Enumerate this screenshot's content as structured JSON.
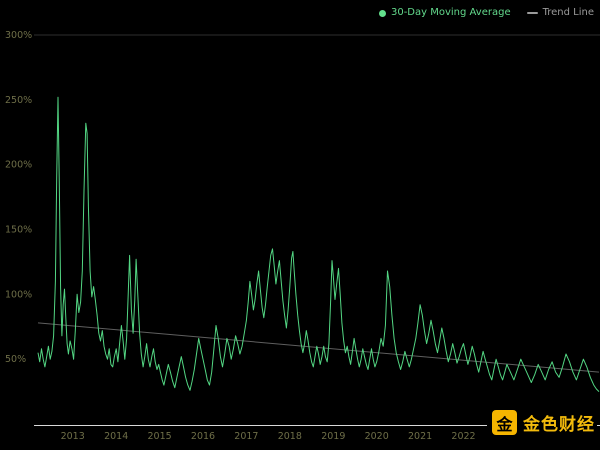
{
  "legend": {
    "series1": "30-Day Moving Average",
    "series2": "Trend Line"
  },
  "watermark": {
    "text": "金色财经",
    "logo_glyph": "金"
  },
  "colors": {
    "background": "#000000",
    "series": "#53d683",
    "legend_dot": "#63e08c",
    "trend": "#707070",
    "tick": "#6e6e48",
    "axis": "#d9d9d9",
    "grid": "#2e2e2e",
    "watermark_gold": "#f3bb0c",
    "watermark_logo_bg": "#f6b500"
  },
  "chart_data": {
    "type": "line",
    "title": "",
    "xlabel": "",
    "ylabel": "",
    "legend_position": "top-right",
    "grid": "top boundary line only, black background",
    "xlim": [
      2012.2,
      2025.12
    ],
    "ylim": [
      0,
      300
    ],
    "yticks": [
      {
        "value": 300,
        "label": "300%"
      },
      {
        "value": 250,
        "label": "250%"
      },
      {
        "value": 200,
        "label": "200%"
      },
      {
        "value": 150,
        "label": "150%"
      },
      {
        "value": 100,
        "label": "100%"
      },
      {
        "value": 50,
        "label": "50%"
      }
    ],
    "xticks": [
      {
        "value": 2013,
        "label": "2013"
      },
      {
        "value": 2014,
        "label": "2014"
      },
      {
        "value": 2015,
        "label": "2015"
      },
      {
        "value": 2016,
        "label": "2016"
      },
      {
        "value": 2017,
        "label": "2017"
      },
      {
        "value": 2018,
        "label": "2018"
      },
      {
        "value": 2019,
        "label": "2019"
      },
      {
        "value": 2020,
        "label": "2020"
      },
      {
        "value": 2021,
        "label": "2021"
      },
      {
        "value": 2022,
        "label": "2022"
      }
    ],
    "series": [
      {
        "name": "30-Day Moving Average",
        "color": "#53d683",
        "points": [
          [
            2012.2,
            55
          ],
          [
            2012.24,
            48
          ],
          [
            2012.28,
            58
          ],
          [
            2012.32,
            50
          ],
          [
            2012.36,
            44
          ],
          [
            2012.4,
            52
          ],
          [
            2012.44,
            60
          ],
          [
            2012.48,
            50
          ],
          [
            2012.52,
            56
          ],
          [
            2012.56,
            68
          ],
          [
            2012.6,
            110
          ],
          [
            2012.63,
            190
          ],
          [
            2012.66,
            252
          ],
          [
            2012.69,
            185
          ],
          [
            2012.72,
            105
          ],
          [
            2012.75,
            68
          ],
          [
            2012.78,
            92
          ],
          [
            2012.81,
            104
          ],
          [
            2012.84,
            82
          ],
          [
            2012.87,
            62
          ],
          [
            2012.9,
            54
          ],
          [
            2012.94,
            64
          ],
          [
            2012.98,
            58
          ],
          [
            2013.02,
            50
          ],
          [
            2013.06,
            72
          ],
          [
            2013.1,
            100
          ],
          [
            2013.14,
            86
          ],
          [
            2013.18,
            94
          ],
          [
            2013.22,
            118
          ],
          [
            2013.26,
            180
          ],
          [
            2013.3,
            232
          ],
          [
            2013.33,
            224
          ],
          [
            2013.36,
            168
          ],
          [
            2013.4,
            118
          ],
          [
            2013.44,
            98
          ],
          [
            2013.48,
            106
          ],
          [
            2013.52,
            96
          ],
          [
            2013.56,
            84
          ],
          [
            2013.6,
            70
          ],
          [
            2013.64,
            64
          ],
          [
            2013.68,
            72
          ],
          [
            2013.72,
            60
          ],
          [
            2013.76,
            54
          ],
          [
            2013.8,
            50
          ],
          [
            2013.84,
            58
          ],
          [
            2013.88,
            46
          ],
          [
            2013.92,
            44
          ],
          [
            2013.96,
            52
          ],
          [
            2014.0,
            58
          ],
          [
            2014.04,
            48
          ],
          [
            2014.08,
            62
          ],
          [
            2014.12,
            76
          ],
          [
            2014.16,
            64
          ],
          [
            2014.2,
            50
          ],
          [
            2014.24,
            66
          ],
          [
            2014.28,
            102
          ],
          [
            2014.31,
            130
          ],
          [
            2014.35,
            88
          ],
          [
            2014.39,
            70
          ],
          [
            2014.43,
            96
          ],
          [
            2014.46,
            127
          ],
          [
            2014.5,
            98
          ],
          [
            2014.54,
            70
          ],
          [
            2014.58,
            54
          ],
          [
            2014.62,
            44
          ],
          [
            2014.66,
            52
          ],
          [
            2014.7,
            62
          ],
          [
            2014.74,
            50
          ],
          [
            2014.78,
            44
          ],
          [
            2014.82,
            52
          ],
          [
            2014.86,
            58
          ],
          [
            2014.9,
            48
          ],
          [
            2014.94,
            42
          ],
          [
            2014.98,
            46
          ],
          [
            2015.02,
            40
          ],
          [
            2015.06,
            34
          ],
          [
            2015.1,
            30
          ],
          [
            2015.15,
            38
          ],
          [
            2015.2,
            46
          ],
          [
            2015.25,
            40
          ],
          [
            2015.3,
            33
          ],
          [
            2015.35,
            28
          ],
          [
            2015.4,
            36
          ],
          [
            2015.45,
            44
          ],
          [
            2015.5,
            52
          ],
          [
            2015.55,
            44
          ],
          [
            2015.6,
            36
          ],
          [
            2015.65,
            30
          ],
          [
            2015.7,
            26
          ],
          [
            2015.75,
            33
          ],
          [
            2015.8,
            42
          ],
          [
            2015.85,
            54
          ],
          [
            2015.9,
            66
          ],
          [
            2015.95,
            58
          ],
          [
            2016.0,
            50
          ],
          [
            2016.05,
            42
          ],
          [
            2016.1,
            34
          ],
          [
            2016.15,
            30
          ],
          [
            2016.2,
            40
          ],
          [
            2016.25,
            58
          ],
          [
            2016.3,
            76
          ],
          [
            2016.35,
            66
          ],
          [
            2016.4,
            52
          ],
          [
            2016.45,
            44
          ],
          [
            2016.5,
            54
          ],
          [
            2016.55,
            66
          ],
          [
            2016.6,
            60
          ],
          [
            2016.65,
            50
          ],
          [
            2016.7,
            58
          ],
          [
            2016.75,
            68
          ],
          [
            2016.8,
            62
          ],
          [
            2016.85,
            54
          ],
          [
            2016.9,
            60
          ],
          [
            2016.95,
            70
          ],
          [
            2017.0,
            80
          ],
          [
            2017.04,
            94
          ],
          [
            2017.08,
            110
          ],
          [
            2017.12,
            100
          ],
          [
            2017.16,
            88
          ],
          [
            2017.2,
            96
          ],
          [
            2017.24,
            108
          ],
          [
            2017.28,
            118
          ],
          [
            2017.32,
            104
          ],
          [
            2017.36,
            90
          ],
          [
            2017.4,
            82
          ],
          [
            2017.44,
            92
          ],
          [
            2017.48,
            106
          ],
          [
            2017.52,
            118
          ],
          [
            2017.56,
            130
          ],
          [
            2017.6,
            135
          ],
          [
            2017.64,
            122
          ],
          [
            2017.68,
            108
          ],
          [
            2017.72,
            118
          ],
          [
            2017.76,
            126
          ],
          [
            2017.8,
            110
          ],
          [
            2017.84,
            95
          ],
          [
            2017.88,
            84
          ],
          [
            2017.92,
            74
          ],
          [
            2017.96,
            88
          ],
          [
            2018.0,
            106
          ],
          [
            2018.04,
            128
          ],
          [
            2018.07,
            133
          ],
          [
            2018.1,
            118
          ],
          [
            2018.14,
            100
          ],
          [
            2018.18,
            84
          ],
          [
            2018.22,
            72
          ],
          [
            2018.26,
            62
          ],
          [
            2018.3,
            55
          ],
          [
            2018.34,
            62
          ],
          [
            2018.38,
            72
          ],
          [
            2018.42,
            64
          ],
          [
            2018.46,
            55
          ],
          [
            2018.5,
            48
          ],
          [
            2018.54,
            44
          ],
          [
            2018.58,
            52
          ],
          [
            2018.62,
            60
          ],
          [
            2018.66,
            54
          ],
          [
            2018.7,
            46
          ],
          [
            2018.74,
            52
          ],
          [
            2018.78,
            60
          ],
          [
            2018.82,
            52
          ],
          [
            2018.86,
            48
          ],
          [
            2018.9,
            62
          ],
          [
            2018.94,
            96
          ],
          [
            2018.97,
            126
          ],
          [
            2019.0,
            114
          ],
          [
            2019.04,
            96
          ],
          [
            2019.08,
            108
          ],
          [
            2019.12,
            120
          ],
          [
            2019.16,
            100
          ],
          [
            2019.2,
            78
          ],
          [
            2019.24,
            64
          ],
          [
            2019.28,
            55
          ],
          [
            2019.32,
            60
          ],
          [
            2019.36,
            52
          ],
          [
            2019.4,
            46
          ],
          [
            2019.44,
            56
          ],
          [
            2019.48,
            66
          ],
          [
            2019.52,
            58
          ],
          [
            2019.56,
            50
          ],
          [
            2019.6,
            44
          ],
          [
            2019.64,
            50
          ],
          [
            2019.68,
            58
          ],
          [
            2019.72,
            52
          ],
          [
            2019.76,
            46
          ],
          [
            2019.8,
            42
          ],
          [
            2019.84,
            50
          ],
          [
            2019.88,
            58
          ],
          [
            2019.92,
            50
          ],
          [
            2019.96,
            44
          ],
          [
            2020.0,
            48
          ],
          [
            2020.05,
            56
          ],
          [
            2020.1,
            66
          ],
          [
            2020.15,
            60
          ],
          [
            2020.2,
            76
          ],
          [
            2020.25,
            118
          ],
          [
            2020.3,
            106
          ],
          [
            2020.35,
            84
          ],
          [
            2020.4,
            66
          ],
          [
            2020.45,
            55
          ],
          [
            2020.5,
            48
          ],
          [
            2020.55,
            42
          ],
          [
            2020.6,
            48
          ],
          [
            2020.65,
            56
          ],
          [
            2020.7,
            50
          ],
          [
            2020.75,
            44
          ],
          [
            2020.8,
            50
          ],
          [
            2020.85,
            58
          ],
          [
            2020.9,
            66
          ],
          [
            2020.95,
            78
          ],
          [
            2021.0,
            92
          ],
          [
            2021.05,
            84
          ],
          [
            2021.1,
            72
          ],
          [
            2021.15,
            62
          ],
          [
            2021.2,
            70
          ],
          [
            2021.25,
            80
          ],
          [
            2021.3,
            72
          ],
          [
            2021.35,
            62
          ],
          [
            2021.4,
            55
          ],
          [
            2021.45,
            64
          ],
          [
            2021.5,
            74
          ],
          [
            2021.55,
            66
          ],
          [
            2021.6,
            56
          ],
          [
            2021.65,
            48
          ],
          [
            2021.7,
            54
          ],
          [
            2021.75,
            62
          ],
          [
            2021.8,
            55
          ],
          [
            2021.85,
            47
          ],
          [
            2021.9,
            52
          ],
          [
            2021.95,
            58
          ],
          [
            2022.0,
            62
          ],
          [
            2022.05,
            54
          ],
          [
            2022.1,
            46
          ],
          [
            2022.15,
            52
          ],
          [
            2022.2,
            60
          ],
          [
            2022.25,
            54
          ],
          [
            2022.3,
            46
          ],
          [
            2022.35,
            40
          ],
          [
            2022.4,
            48
          ],
          [
            2022.45,
            56
          ],
          [
            2022.5,
            50
          ],
          [
            2022.55,
            44
          ],
          [
            2022.6,
            38
          ],
          [
            2022.65,
            34
          ],
          [
            2022.7,
            42
          ],
          [
            2022.75,
            50
          ],
          [
            2022.8,
            44
          ],
          [
            2022.85,
            38
          ],
          [
            2022.9,
            34
          ],
          [
            2022.95,
            40
          ],
          [
            2023.0,
            46
          ],
          [
            2023.08,
            40
          ],
          [
            2023.16,
            34
          ],
          [
            2023.24,
            42
          ],
          [
            2023.32,
            50
          ],
          [
            2023.4,
            44
          ],
          [
            2023.48,
            38
          ],
          [
            2023.56,
            32
          ],
          [
            2023.64,
            38
          ],
          [
            2023.72,
            46
          ],
          [
            2023.8,
            40
          ],
          [
            2023.88,
            34
          ],
          [
            2023.96,
            42
          ],
          [
            2024.04,
            48
          ],
          [
            2024.12,
            40
          ],
          [
            2024.2,
            36
          ],
          [
            2024.28,
            44
          ],
          [
            2024.36,
            54
          ],
          [
            2024.44,
            48
          ],
          [
            2024.52,
            40
          ],
          [
            2024.6,
            34
          ],
          [
            2024.68,
            42
          ],
          [
            2024.76,
            50
          ],
          [
            2024.84,
            44
          ],
          [
            2024.92,
            36
          ],
          [
            2025.0,
            30
          ],
          [
            2025.06,
            27
          ],
          [
            2025.12,
            25
          ]
        ]
      },
      {
        "name": "Trend Line",
        "color": "#707070",
        "points": [
          [
            2012.2,
            78
          ],
          [
            2025.12,
            40
          ]
        ]
      }
    ]
  }
}
